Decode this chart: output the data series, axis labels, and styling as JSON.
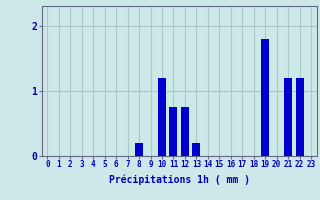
{
  "hours": [
    0,
    1,
    2,
    3,
    4,
    5,
    6,
    7,
    8,
    9,
    10,
    11,
    12,
    13,
    14,
    15,
    16,
    17,
    18,
    19,
    20,
    21,
    22,
    23
  ],
  "values": [
    0,
    0,
    0,
    0,
    0,
    0,
    0,
    0,
    0.2,
    0,
    1.2,
    0.75,
    0.75,
    0.2,
    0,
    0,
    0,
    0,
    0,
    1.8,
    0,
    1.2,
    1.2,
    0
  ],
  "bar_color": "#0000cc",
  "background_color": "#cce8e8",
  "grid_color": "#aac8c8",
  "axis_color": "#666688",
  "text_color": "#0000bb",
  "xlabel": "Précipitations 1h ( mm )",
  "xlabel_fontsize": 7,
  "tick_fontsize": 5.5,
  "ytick_fontsize": 7,
  "yticks": [
    0,
    1,
    2
  ],
  "ylim": [
    0,
    2.3
  ],
  "xlim": [
    -0.5,
    23.5
  ]
}
